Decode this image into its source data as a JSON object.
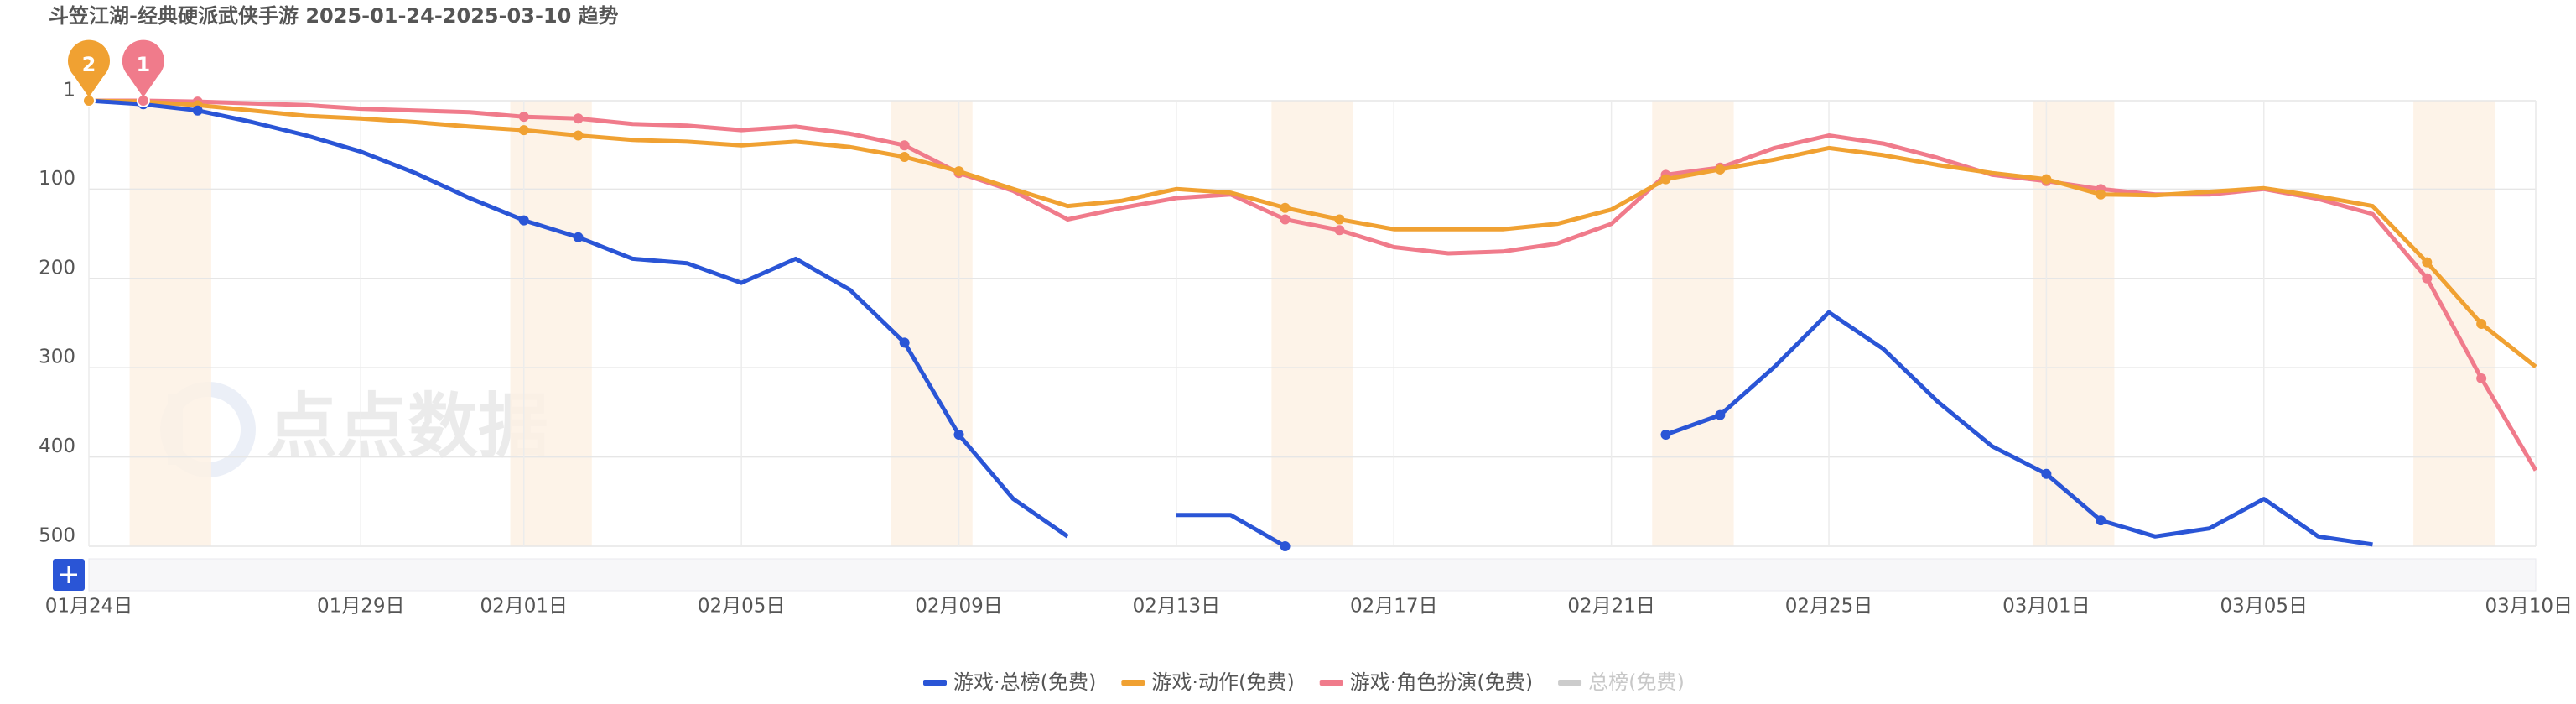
{
  "chart_data": {
    "type": "line",
    "title": "斗笠江湖-经典硬派武侠手游 2025-01-24-2025-03-10 趋势",
    "watermark": "点点数据",
    "categories": [
      "01月24日",
      null,
      null,
      null,
      null,
      "01月29日",
      null,
      null,
      "02月01日",
      null,
      null,
      null,
      "02月05日",
      null,
      null,
      null,
      "02月09日",
      null,
      null,
      null,
      "02月13日",
      null,
      null,
      null,
      "02月17日",
      null,
      null,
      null,
      "02月21日",
      null,
      null,
      null,
      "02月25日",
      null,
      null,
      null,
      "03月01日",
      null,
      null,
      null,
      "03月05日",
      null,
      null,
      null,
      null,
      "03月10日"
    ],
    "ylim": [
      1,
      500
    ],
    "y_inverted": true,
    "yticks": [
      1,
      100,
      200,
      300,
      400,
      500
    ],
    "grid": true,
    "series": [
      {
        "name": "游戏·总榜(免费)",
        "color": "#2a55d6",
        "values": [
          1,
          5,
          12,
          25,
          40,
          58,
          82,
          110,
          135,
          154,
          178,
          183,
          205,
          178,
          213,
          272,
          375,
          447,
          489,
          null,
          465,
          465,
          500,
          null,
          null,
          null,
          null,
          null,
          null,
          375,
          353,
          299,
          238,
          279,
          338,
          388,
          419,
          471,
          489,
          480,
          447,
          489,
          498,
          null,
          null,
          null
        ]
      },
      {
        "name": "游戏·动作(免费)",
        "color": "#f0a132",
        "values": [
          1,
          2,
          6,
          12,
          18,
          21,
          25,
          30,
          34,
          40,
          45,
          47,
          51,
          47,
          53,
          64,
          80,
          100,
          119,
          113,
          100,
          104,
          121,
          134,
          145,
          145,
          145,
          139,
          123,
          89,
          78,
          67,
          54,
          62,
          73,
          82,
          89,
          106,
          107,
          103,
          99,
          108,
          119,
          182,
          251,
          299
        ]
      },
      {
        "name": "游戏·角色扮演(免费)",
        "color": "#f07b8b",
        "values": [
          1,
          1,
          2,
          4,
          6,
          10,
          12,
          14,
          19,
          21,
          27,
          29,
          34,
          30,
          38,
          51,
          82,
          102,
          134,
          121,
          110,
          106,
          134,
          146,
          165,
          172,
          170,
          161,
          139,
          84,
          76,
          54,
          40,
          49,
          65,
          84,
          91,
          100,
          106,
          106,
          100,
          111,
          128,
          200,
          312,
          415
        ]
      },
      {
        "name": "总榜(免费)",
        "color": "#cccccc",
        "hidden": true,
        "values": [
          null,
          null,
          null,
          null,
          null,
          null,
          null,
          null,
          null,
          null,
          null,
          null,
          null,
          null,
          null,
          null,
          null,
          null,
          null,
          null,
          null,
          null,
          null,
          null,
          null,
          null,
          null,
          null,
          null,
          null,
          null,
          null,
          null,
          null,
          null,
          null,
          null,
          null,
          null,
          null,
          null,
          null,
          null,
          null,
          null,
          null
        ]
      }
    ],
    "annotations": [
      {
        "label": "2",
        "x_index": 0,
        "color": "#f0a132"
      },
      {
        "label": "1",
        "x_index": 1,
        "color": "#f07b8b"
      }
    ],
    "legend": "bottom"
  }
}
